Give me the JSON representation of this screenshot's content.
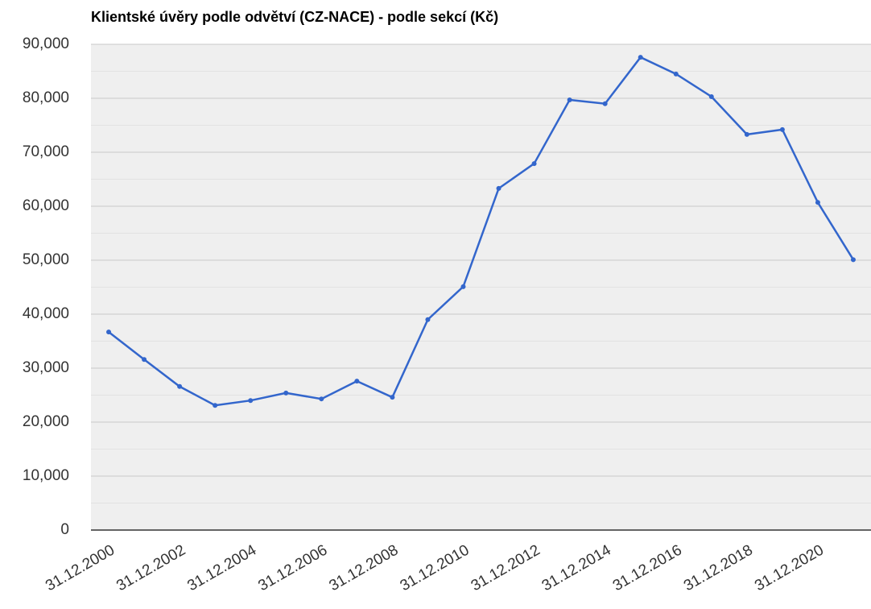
{
  "chart_data": {
    "type": "line",
    "title": "Klientské úvěry podle odvětví (CZ-NACE) - podle sekcí (Kč)",
    "categories": [
      "31.12.2000",
      null,
      "31.12.2002",
      null,
      "31.12.2004",
      null,
      "31.12.2006",
      null,
      "31.12.2008",
      null,
      "31.12.2010",
      null,
      "31.12.2012",
      null,
      "31.12.2014",
      null,
      "31.12.2016",
      null,
      "31.12.2018",
      null,
      "31.12.2020",
      null
    ],
    "series": [
      {
        "color": "#3366cc",
        "values": [
          36700,
          31600,
          26600,
          23100,
          24000,
          25400,
          24300,
          27600,
          24600,
          39000,
          45100,
          63300,
          67900,
          79700,
          79000,
          87600,
          84500,
          80300,
          73300,
          74200,
          60700,
          50100
        ]
      }
    ],
    "ylim": [
      0,
      90000
    ],
    "yticks": [
      0,
      {
        "value": 10000,
        "label": "10,000"
      },
      {
        "value": 20000,
        "label": "20,000"
      },
      {
        "value": 30000,
        "label": "30,000"
      },
      {
        "value": 40000,
        "label": "40,000"
      },
      {
        "value": 50000,
        "label": "50,000"
      },
      {
        "value": 60000,
        "label": "60,000"
      },
      {
        "value": 70000,
        "label": "70,000"
      },
      {
        "value": 80000,
        "label": "80,000"
      },
      {
        "value": 90000,
        "label": "90,000"
      }
    ],
    "grid": true,
    "minor_grid": true
  }
}
